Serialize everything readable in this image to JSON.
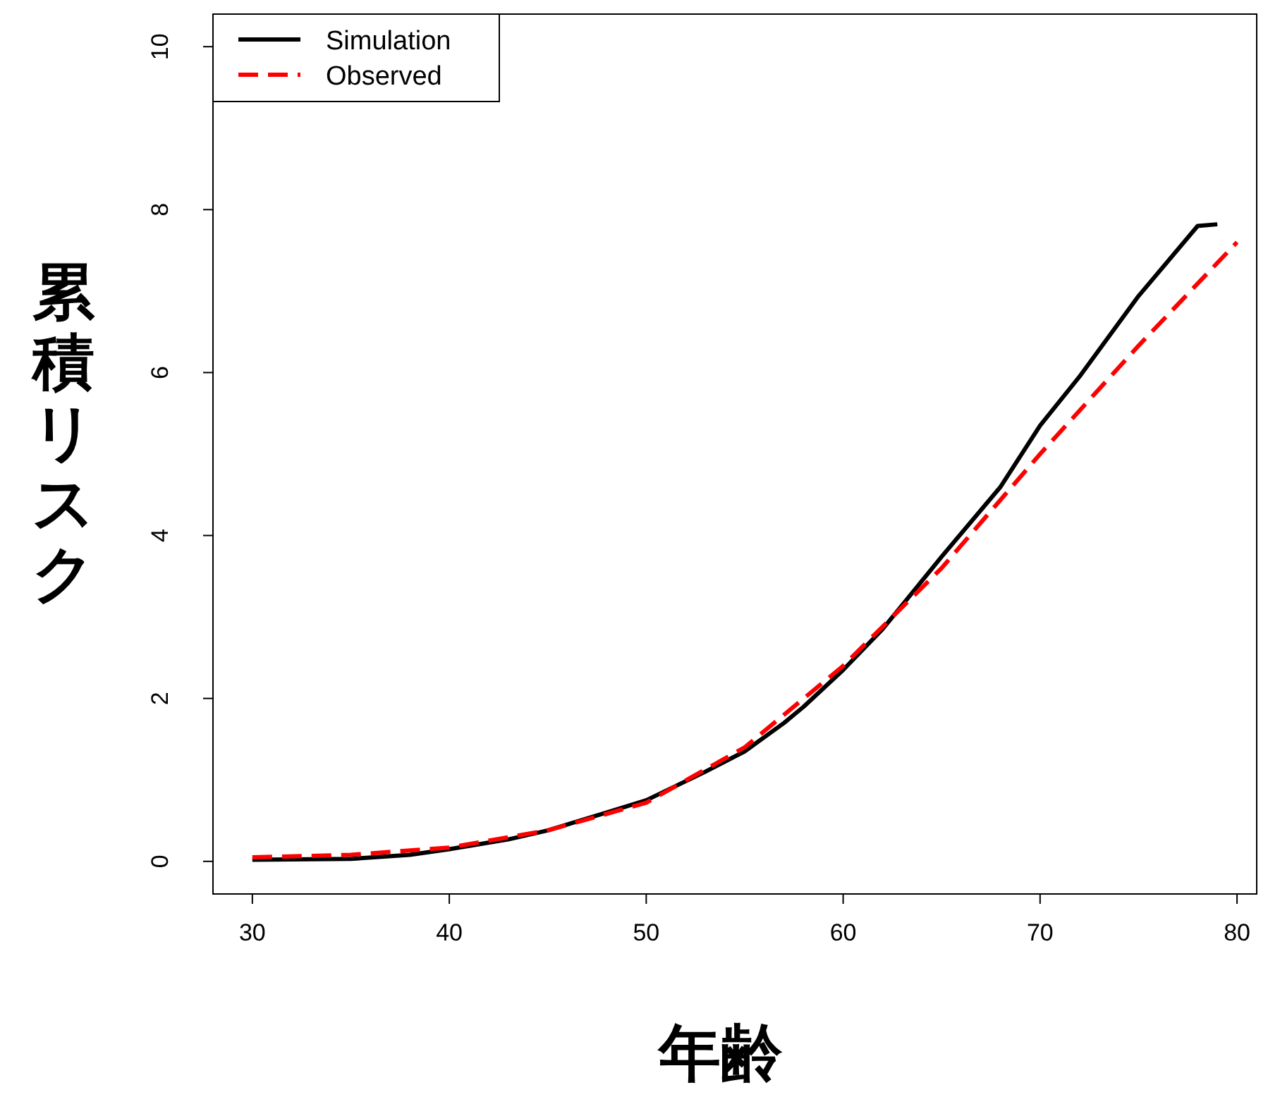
{
  "chart_data": {
    "type": "line",
    "xlabel": "年齢",
    "ylabel": "累積リスク",
    "xlim": [
      28,
      81
    ],
    "ylim": [
      -0.4,
      10.4
    ],
    "xticks": [
      30,
      40,
      50,
      60,
      70,
      80
    ],
    "yticks": [
      0,
      2,
      4,
      6,
      8,
      10
    ],
    "grid": false,
    "legend": "top left",
    "series": [
      {
        "name": "Simulation",
        "color": "#000000",
        "line_style": "solid",
        "x": [
          30,
          35,
          38,
          40,
          43,
          45,
          48,
          50,
          53,
          55,
          57,
          58,
          60,
          62,
          65,
          68,
          70,
          72,
          75,
          78,
          79
        ],
        "values": [
          0.02,
          0.03,
          0.08,
          0.15,
          0.27,
          0.38,
          0.6,
          0.75,
          1.1,
          1.35,
          1.7,
          1.9,
          2.35,
          2.85,
          3.74,
          4.6,
          5.35,
          5.95,
          6.94,
          7.8,
          7.82
        ]
      },
      {
        "name": "Observed",
        "color": "#ff0000",
        "line_style": "dashed",
        "x": [
          30,
          35,
          40,
          45,
          50,
          55,
          60,
          65,
          70,
          75,
          80
        ],
        "values": [
          0.05,
          0.08,
          0.17,
          0.38,
          0.72,
          1.4,
          2.4,
          3.6,
          5.0,
          6.33,
          7.6
        ]
      }
    ]
  }
}
